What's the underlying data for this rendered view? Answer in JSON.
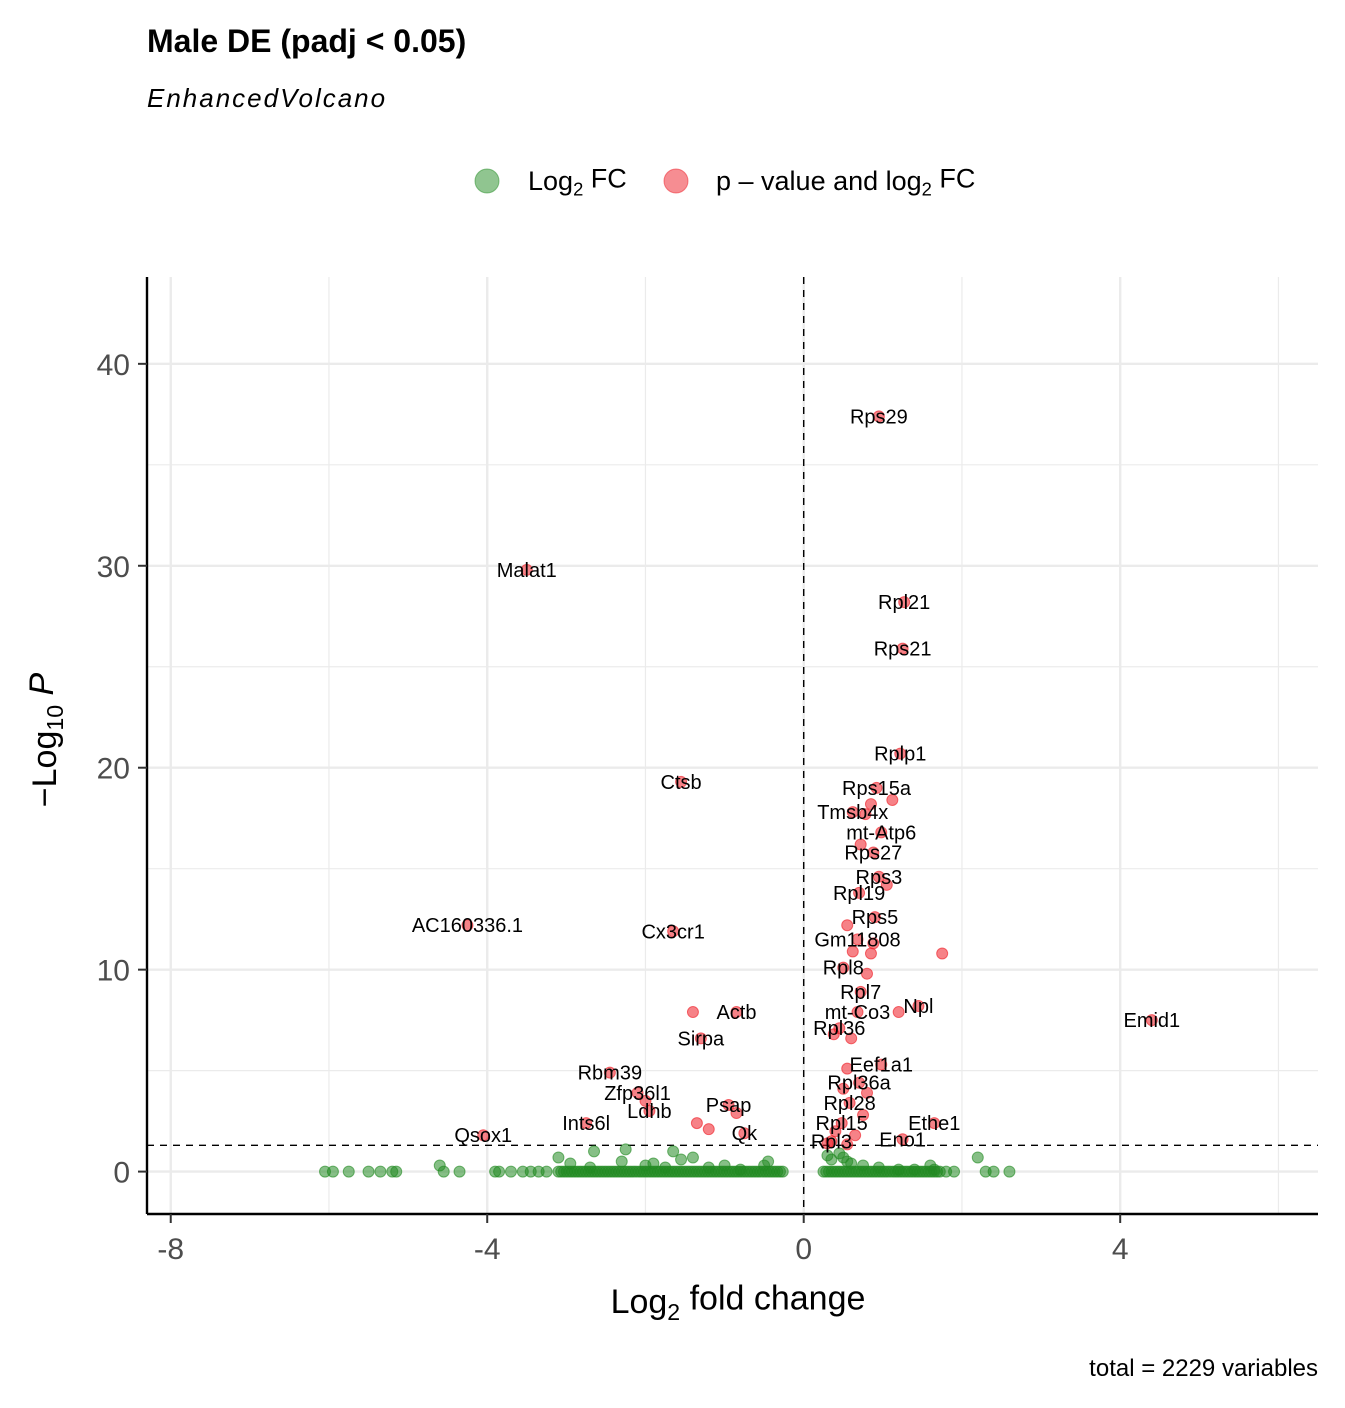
{
  "chart_data": {
    "type": "scatter",
    "title": "Male DE (padj < 0.05)",
    "subtitle": "EnhancedVolcano",
    "caption": "total = 2229 variables",
    "xlabel": {
      "prefix": "Log",
      "sub": "2",
      "suffix": " fold change"
    },
    "ylabel": {
      "prefix": "−Log",
      "sub": "10",
      "suffix": "P"
    },
    "xlim": [
      -8.3,
      6.5
    ],
    "ylim": [
      -2.1,
      44.3
    ],
    "x_ticks": [
      -8,
      -4,
      0,
      4
    ],
    "x_tick_labels": [
      "-8",
      "-4",
      "0",
      "4"
    ],
    "y_ticks": [
      0,
      10,
      20,
      30,
      40
    ],
    "y_tick_labels": [
      "0",
      "10",
      "20",
      "30",
      "40"
    ],
    "fc_cutoff": 0,
    "p_cutoff_line": 1.3,
    "grid": true,
    "legend_position": "top",
    "legend": [
      {
        "key": "fc",
        "parts": [
          "Log",
          "2",
          " FC"
        ],
        "color": "#228b22"
      },
      {
        "key": "pfc",
        "parts": [
          "p – value and log",
          "2",
          " FC"
        ],
        "color": "#ee1c25"
      }
    ],
    "colors": {
      "fc": "#228b22",
      "pfc": "#ee1c25"
    },
    "series": [
      {
        "key": "pfc",
        "points": [
          {
            "x": 0.95,
            "y": 37.4,
            "label": "Rps29"
          },
          {
            "x": -3.5,
            "y": 29.8,
            "label": "Malat1"
          },
          {
            "x": 1.27,
            "y": 28.2,
            "label": "Rpl21"
          },
          {
            "x": 1.25,
            "y": 25.9,
            "label": "Rps21"
          },
          {
            "x": 1.22,
            "y": 20.7,
            "label": "Rplp1"
          },
          {
            "x": -1.55,
            "y": 19.3,
            "label": "Ctsb"
          },
          {
            "x": 0.92,
            "y": 19.0,
            "label": "Rps15a"
          },
          {
            "x": 1.12,
            "y": 18.4
          },
          {
            "x": 0.85,
            "y": 18.2
          },
          {
            "x": 0.62,
            "y": 17.8,
            "label": "Tmsb4x"
          },
          {
            "x": 0.78,
            "y": 17.7
          },
          {
            "x": 0.98,
            "y": 16.8,
            "label": "mt-Atp6"
          },
          {
            "x": 0.72,
            "y": 16.2
          },
          {
            "x": 0.88,
            "y": 15.8,
            "label": "Rps27"
          },
          {
            "x": 0.95,
            "y": 14.6,
            "label": "Rps3"
          },
          {
            "x": 1.05,
            "y": 14.2
          },
          {
            "x": 0.7,
            "y": 13.8,
            "label": "Rpl19"
          },
          {
            "x": 0.9,
            "y": 12.6,
            "label": "Rps5"
          },
          {
            "x": 0.55,
            "y": 12.2
          },
          {
            "x": -4.25,
            "y": 12.2,
            "label": "AC160336.1"
          },
          {
            "x": -1.65,
            "y": 11.9,
            "label": "Cx3cr1"
          },
          {
            "x": 0.68,
            "y": 11.5,
            "label": "Gm11808"
          },
          {
            "x": 0.88,
            "y": 11.3
          },
          {
            "x": 0.62,
            "y": 10.9
          },
          {
            "x": 0.85,
            "y": 10.8
          },
          {
            "x": 1.75,
            "y": 10.8
          },
          {
            "x": 0.5,
            "y": 10.1,
            "label": "Rpl8"
          },
          {
            "x": 0.8,
            "y": 9.8
          },
          {
            "x": 0.72,
            "y": 8.9,
            "label": "Rpl7"
          },
          {
            "x": 1.45,
            "y": 8.2,
            "label": "Npl"
          },
          {
            "x": 1.2,
            "y": 7.9
          },
          {
            "x": 0.68,
            "y": 7.9,
            "label": "mt-Co3"
          },
          {
            "x": -1.4,
            "y": 7.9
          },
          {
            "x": -0.85,
            "y": 7.9,
            "label": "Actb"
          },
          {
            "x": 4.4,
            "y": 7.5,
            "label": "Emid1"
          },
          {
            "x": 0.45,
            "y": 7.1,
            "label": "Rpl36"
          },
          {
            "x": 0.38,
            "y": 6.8
          },
          {
            "x": 0.6,
            "y": 6.6
          },
          {
            "x": -1.3,
            "y": 6.6,
            "label": "Sirpa"
          },
          {
            "x": 0.98,
            "y": 5.3,
            "label": "Eef1a1"
          },
          {
            "x": 0.55,
            "y": 5.1
          },
          {
            "x": -2.45,
            "y": 4.9,
            "label": "Rbm39"
          },
          {
            "x": 0.7,
            "y": 4.4,
            "label": "Rpl36a"
          },
          {
            "x": 0.5,
            "y": 4.1
          },
          {
            "x": 0.8,
            "y": 3.9
          },
          {
            "x": -2.1,
            "y": 3.9,
            "label": "Zfp36l1"
          },
          {
            "x": -2.0,
            "y": 3.5
          },
          {
            "x": 0.58,
            "y": 3.4,
            "label": "Rpl28"
          },
          {
            "x": -0.95,
            "y": 3.3,
            "label": "Psap"
          },
          {
            "x": -1.95,
            "y": 3.0,
            "label": "Ldhb"
          },
          {
            "x": -0.85,
            "y": 2.9
          },
          {
            "x": 0.75,
            "y": 2.8
          },
          {
            "x": -2.75,
            "y": 2.4,
            "label": "Ints6l"
          },
          {
            "x": -1.35,
            "y": 2.4
          },
          {
            "x": 0.48,
            "y": 2.4,
            "label": "Rpl15"
          },
          {
            "x": 1.65,
            "y": 2.4,
            "label": "Ethe1"
          },
          {
            "x": -0.75,
            "y": 1.9,
            "label": "Qk"
          },
          {
            "x": -1.2,
            "y": 2.1
          },
          {
            "x": 0.4,
            "y": 2.0
          },
          {
            "x": 0.65,
            "y": 1.8
          },
          {
            "x": -4.05,
            "y": 1.8,
            "label": "Qsox1"
          },
          {
            "x": 0.35,
            "y": 1.5,
            "label": "Rpl3"
          },
          {
            "x": 1.25,
            "y": 1.6,
            "label": "Eno1"
          },
          {
            "x": 0.3,
            "y": 1.4
          },
          {
            "x": 0.55,
            "y": 1.35
          }
        ]
      },
      {
        "key": "fc",
        "points": [
          {
            "x": -6.05,
            "y": 0
          },
          {
            "x": -5.95,
            "y": 0
          },
          {
            "x": -5.75,
            "y": 0
          },
          {
            "x": -5.5,
            "y": 0
          },
          {
            "x": -5.35,
            "y": 0
          },
          {
            "x": -5.2,
            "y": 0
          },
          {
            "x": -5.15,
            "y": 0
          },
          {
            "x": -4.6,
            "y": 0.3
          },
          {
            "x": -4.55,
            "y": 0
          },
          {
            "x": -4.35,
            "y": 0
          },
          {
            "x": -3.9,
            "y": 0
          },
          {
            "x": -3.85,
            "y": 0
          },
          {
            "x": -3.7,
            "y": 0
          },
          {
            "x": -3.55,
            "y": 0
          },
          {
            "x": -3.45,
            "y": 0
          },
          {
            "x": -3.35,
            "y": 0
          },
          {
            "x": -3.25,
            "y": 0
          },
          {
            "x": -3.1,
            "y": 0.7
          },
          {
            "x": -2.95,
            "y": 0.4
          },
          {
            "x": -2.7,
            "y": 0.2
          },
          {
            "x": -2.65,
            "y": 1.0
          },
          {
            "x": -2.3,
            "y": 0.5
          },
          {
            "x": -2.25,
            "y": 1.1
          },
          {
            "x": -2.0,
            "y": 0.3
          },
          {
            "x": -1.9,
            "y": 0.4
          },
          {
            "x": -1.75,
            "y": 0.2
          },
          {
            "x": -1.65,
            "y": 1.0
          },
          {
            "x": -1.55,
            "y": 0.6
          },
          {
            "x": -1.4,
            "y": 0.7
          },
          {
            "x": -1.2,
            "y": 0.2
          },
          {
            "x": -1.0,
            "y": 0.3
          },
          {
            "x": -0.8,
            "y": 0.1
          },
          {
            "x": -0.5,
            "y": 0.3
          },
          {
            "x": -0.45,
            "y": 0.5
          },
          {
            "x": 0.3,
            "y": 0.8
          },
          {
            "x": 0.35,
            "y": 0.6
          },
          {
            "x": 0.45,
            "y": 0.9
          },
          {
            "x": 0.5,
            "y": 0.7
          },
          {
            "x": 0.55,
            "y": 0.5
          },
          {
            "x": 0.6,
            "y": 0.4
          },
          {
            "x": 0.75,
            "y": 0.3
          },
          {
            "x": 0.95,
            "y": 0.2
          },
          {
            "x": 1.2,
            "y": 0.1
          },
          {
            "x": 1.4,
            "y": 0.1
          },
          {
            "x": 1.6,
            "y": 0.3
          },
          {
            "x": 1.65,
            "y": 0.1
          },
          {
            "x": 1.8,
            "y": 0
          },
          {
            "x": 1.9,
            "y": 0
          },
          {
            "x": 2.2,
            "y": 0.7
          },
          {
            "x": 2.3,
            "y": 0
          },
          {
            "x": 2.4,
            "y": 0
          },
          {
            "x": 2.6,
            "y": 0
          }
        ],
        "dense_ranges": [
          [
            -3.1,
            -0.25
          ],
          [
            0.25,
            1.75
          ]
        ]
      }
    ]
  }
}
